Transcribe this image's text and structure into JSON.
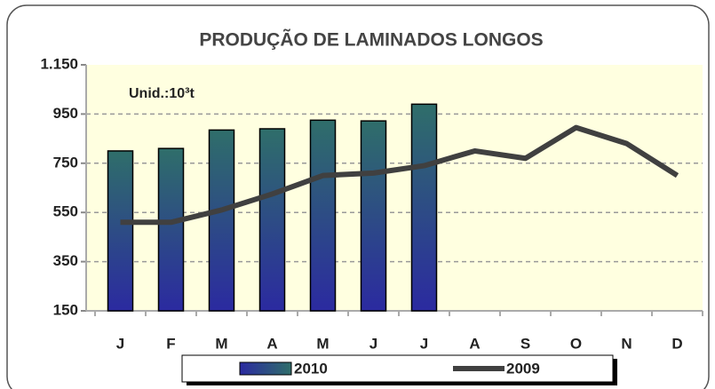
{
  "chart_data": {
    "type": "bar-line",
    "title": "PRODUÇÃO DE LAMINADOS LONGOS",
    "annotation": "Unid.:10³t",
    "categories": [
      "J",
      "F",
      "M",
      "A",
      "M",
      "J",
      "J",
      "A",
      "S",
      "O",
      "N",
      "D"
    ],
    "series": [
      {
        "name": "2010",
        "type": "bar",
        "color": "#2a5f6e",
        "values": [
          800,
          810,
          885,
          890,
          925,
          922,
          990,
          null,
          null,
          null,
          null,
          null
        ]
      },
      {
        "name": "2009",
        "type": "line",
        "color": "#404040",
        "values": [
          510,
          510,
          560,
          625,
          700,
          710,
          740,
          800,
          770,
          895,
          830,
          700
        ]
      }
    ],
    "ylim": [
      150,
      1150
    ],
    "yticks": [
      150,
      350,
      550,
      750,
      950,
      {
        "value": 1150,
        "label": "1.150"
      }
    ],
    "grid": true
  }
}
